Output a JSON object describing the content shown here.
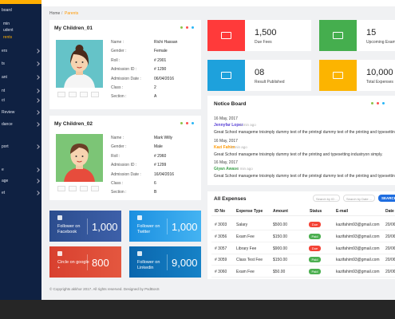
{
  "sidebar": {
    "items": [
      "board",
      "min",
      "udent",
      "rents",
      "ers",
      "ts",
      "ant",
      "nt",
      "ct",
      "Review",
      "dance",
      "port",
      "e",
      "age",
      "et"
    ]
  },
  "breadcrumb": [
    "Home",
    "Parents"
  ],
  "children": [
    {
      "title": "My Children_01",
      "fields": [
        [
          "Name :",
          "Richi Hassan"
        ],
        [
          "Gender :",
          "Female"
        ],
        [
          "Roll :",
          "# 2901"
        ],
        [
          "Admission ID :",
          "# 1290"
        ],
        [
          "Admission Date :",
          "06/04/2016"
        ],
        [
          "Class :",
          "2"
        ],
        [
          "Section :",
          "A"
        ]
      ]
    },
    {
      "title": "My Children_02",
      "fields": [
        [
          "Name :",
          "Mark Willy"
        ],
        [
          "Gender :",
          "Male"
        ],
        [
          "Roll :",
          "# 2960"
        ],
        [
          "Admission ID :",
          "# 1299"
        ],
        [
          "Admission Date :",
          "16/04/2016"
        ],
        [
          "Class :",
          "6"
        ],
        [
          "Section :",
          "B"
        ]
      ]
    }
  ],
  "social": [
    {
      "label": "Follower on Facebook",
      "count": "1,000"
    },
    {
      "label": "Follower on Twitter",
      "count": "1,000"
    },
    {
      "label": "Circle on google +",
      "count": "800"
    },
    {
      "label": "Follower on Linkedin",
      "count": "9,000"
    }
  ],
  "stats": [
    {
      "value": "1,500",
      "label": "Due Fees"
    },
    {
      "value": "15",
      "label": "Upcoming Exams"
    },
    {
      "value": "08",
      "label": "Result Published"
    },
    {
      "value": "10,000",
      "label": "Total Expenses"
    }
  ],
  "notice": {
    "title": "Notice Board",
    "items": [
      {
        "date": "16 May, 2017",
        "author": "Jennyfar Lopez",
        "time": "5 min ago",
        "text": "Great School manageme tnisimply dummy text of the printngl dummy text of the printing and typesetting industry."
      },
      {
        "date": "16 May, 2017",
        "author": "Kazi Fahim",
        "time": "5 min ago",
        "text": "Great School manageme tnisimply dummy text of the printing and typesetting industryon simply."
      },
      {
        "date": "16 May, 2017",
        "author": "Giyan Awase",
        "time": "5 min ago",
        "text": "Great School manageme tnisimply dummy text of the printngl dummy text of the printing and typesetting industry."
      }
    ]
  },
  "expenses": {
    "title": "All Expenses",
    "search_id": "Search by ID ...",
    "search_date": "Search by Date ...",
    "button": "SEARCH",
    "headers": [
      "ID No",
      "Expense Type",
      "Amount",
      "Status",
      "E-mail",
      "Date"
    ],
    "rows": [
      [
        "# 3003",
        "Salary",
        "$500.00",
        "Due",
        "kazifahim93@gmail.com",
        "20/06/"
      ],
      [
        "# 3056",
        "Exam Fee",
        "$150.00",
        "Paid",
        "kazifahim93@gmail.com",
        "20/06/"
      ],
      [
        "# 3057",
        "Library Fee",
        "$900.00",
        "Due",
        "kazifahim93@gmail.com",
        "20/06/"
      ],
      [
        "# 3059",
        "Class Test Fee",
        "$150.00",
        "Paid",
        "kazifahim93@gmail.com",
        "20/06/"
      ],
      [
        "# 3060",
        "Exam Fee",
        "$50.00",
        "Paid",
        "kazifahim93@gmail.com",
        "20/06/"
      ]
    ]
  },
  "footer": "© Copyrights akkhor 2017. All rights reserved. Designed by PsdBosS"
}
